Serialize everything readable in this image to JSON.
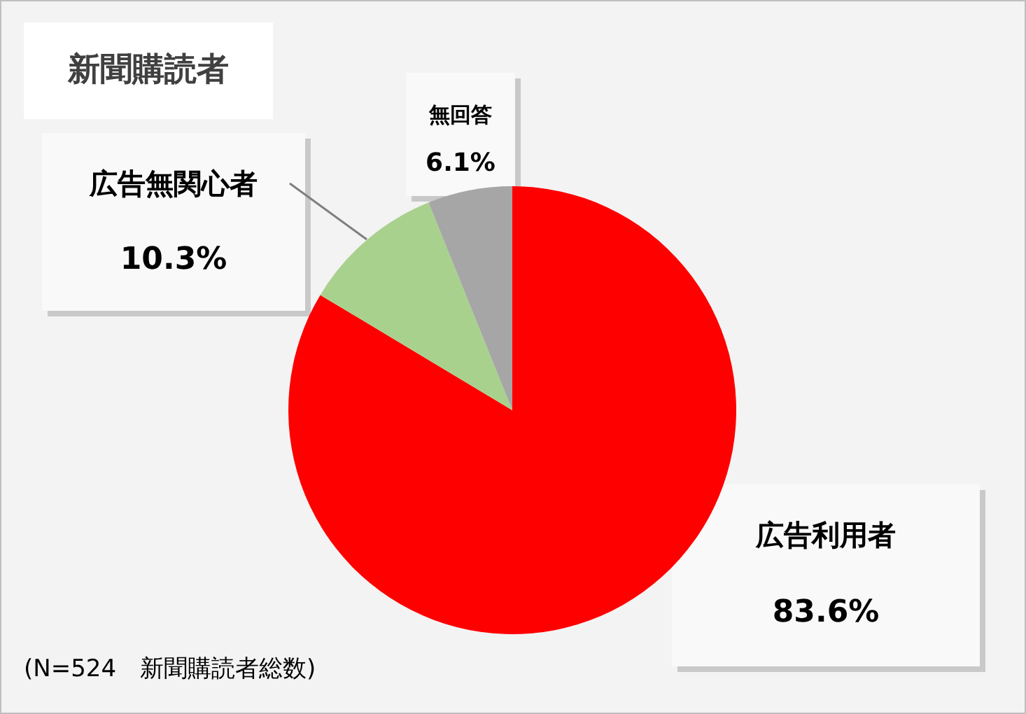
{
  "chart_data": {
    "type": "pie",
    "title": "新聞購読者",
    "categories": [
      "広告利用者",
      "広告無関心者",
      "無回答"
    ],
    "values": [
      83.6,
      10.3,
      6.1
    ],
    "colors": [
      "#ff0000",
      "#a9d18e",
      "#a6a6a6"
    ],
    "value_labels": [
      "83.6%",
      "10.3%",
      "6.1%"
    ],
    "annotations": [
      "(N=524　新聞購読者総数)"
    ]
  }
}
